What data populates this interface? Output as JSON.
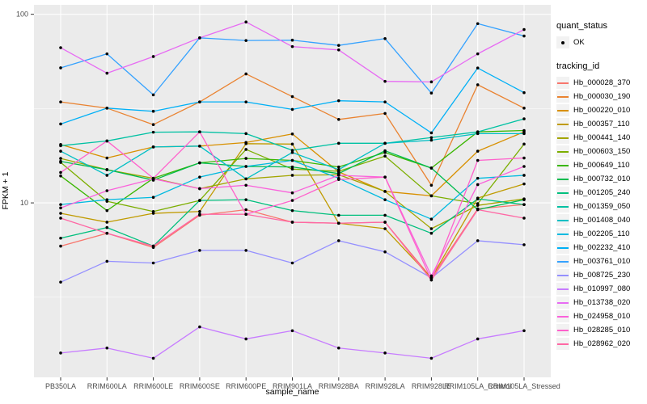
{
  "figure": {
    "background": "#FFFFFF",
    "panel_bg": "#EBEBEB",
    "grid_color": "#FFFFFF",
    "tick_color": "#333333",
    "tick_label_color": "#4D4D4D",
    "point_color": "#000000"
  },
  "axes": {
    "x_label": "sample_name",
    "y_label": "FPKM + 1",
    "y_tick_labels": [
      "100",
      "10"
    ]
  },
  "legend": {
    "quant_title": "quant_status",
    "quant_items": [
      {
        "label": "OK",
        "symbol": "point"
      }
    ],
    "tracking_title": "tracking_id"
  },
  "chart_data": {
    "type": "line",
    "title": "",
    "xlabel": "sample_name",
    "ylabel": "FPKM + 1",
    "y_scale": "log10",
    "ylim": [
      1.19,
      112
    ],
    "y_major_gridlines": [
      10,
      100
    ],
    "y_minor_gridlines": [
      3.162,
      31.62
    ],
    "grid": true,
    "legend_position": "right",
    "point_style": {
      "color": "#000000",
      "shape": "circle",
      "status_label": "OK"
    },
    "categories": [
      "PB350LA",
      "RRIM600LA",
      "RRIM600LE",
      "RRIM600SE",
      "RRIM600PE",
      "RRIM901LA",
      "RRIM928BA",
      "RRIM928LA",
      "RRIM928LE",
      "RRIM105LA_Control",
      "RRIM105LA_Stressed"
    ],
    "series": [
      {
        "name": "Hb_000028_370",
        "color": "#F8766D",
        "values": [
          5.9,
          6.9,
          5.8,
          8.6,
          9.2,
          7.9,
          7.8,
          7.9,
          4.0,
          9.3,
          9.8
        ]
      },
      {
        "name": "Hb_000030_190",
        "color": "#EA8331",
        "values": [
          34.3,
          31.8,
          26.0,
          34.3,
          48.3,
          36.6,
          27.7,
          29.8,
          12.4,
          42.3,
          31.8
        ]
      },
      {
        "name": "Hb_000220_010",
        "color": "#D89000",
        "values": [
          20.4,
          17.3,
          19.8,
          20.0,
          20.9,
          23.2,
          14.6,
          11.5,
          10.9,
          18.8,
          23.8
        ]
      },
      {
        "name": "Hb_000357_110",
        "color": "#C09B00",
        "values": [
          8.8,
          7.9,
          8.8,
          9.0,
          20.6,
          20.5,
          7.8,
          7.3,
          4.0,
          10.6,
          12.6
        ]
      },
      {
        "name": "Hb_000441_140",
        "color": "#A3A500",
        "values": [
          17.2,
          15.0,
          13.5,
          11.9,
          13.4,
          14.0,
          14.1,
          11.5,
          7.3,
          9.7,
          10.5
        ]
      },
      {
        "name": "Hb_000603_150",
        "color": "#7CAE00",
        "values": [
          16.4,
          10.2,
          9.0,
          10.3,
          19.2,
          15.1,
          14.7,
          17.7,
          10.9,
          9.9,
          20.5
        ]
      },
      {
        "name": "Hb_000649_110",
        "color": "#39B600",
        "values": [
          13.9,
          9.1,
          13.5,
          16.3,
          17.2,
          16.8,
          15.5,
          18.5,
          15.3,
          23.8,
          24.2
        ]
      },
      {
        "name": "Hb_000732_010",
        "color": "#00BB4E",
        "values": [
          16.6,
          15.0,
          13.2,
          16.3,
          15.6,
          15.5,
          14.3,
          18.9,
          15.3,
          9.2,
          10.4
        ]
      },
      {
        "name": "Hb_001205_240",
        "color": "#00BF7D",
        "values": [
          6.5,
          7.4,
          5.9,
          10.3,
          10.4,
          9.1,
          8.6,
          8.6,
          6.9,
          10.5,
          9.8
        ]
      },
      {
        "name": "Hb_001359_050",
        "color": "#00C1A3",
        "values": [
          20.1,
          21.3,
          23.7,
          23.8,
          23.3,
          19.0,
          20.7,
          20.7,
          22.2,
          23.8,
          27.9
        ]
      },
      {
        "name": "Hb_001408_040",
        "color": "#00BFC4",
        "values": [
          18.8,
          14.0,
          19.8,
          20.0,
          13.4,
          18.5,
          15.0,
          20.7,
          21.5,
          23.3,
          23.3
        ]
      },
      {
        "name": "Hb_002205_110",
        "color": "#00BAE0",
        "values": [
          9.8,
          10.4,
          10.7,
          13.7,
          15.6,
          16.8,
          13.5,
          10.4,
          8.2,
          13.5,
          14.0
        ]
      },
      {
        "name": "Hb_002232_410",
        "color": "#00B0F6",
        "values": [
          26.2,
          31.8,
          30.6,
          34.3,
          34.3,
          31.3,
          34.8,
          34.3,
          23.5,
          51.9,
          38.4
        ]
      },
      {
        "name": "Hb_003761_010",
        "color": "#35A2FF",
        "values": [
          52.0,
          61.7,
          37.4,
          75.0,
          72.6,
          72.9,
          68.4,
          74.3,
          38.2,
          89.2,
          76.7
        ]
      },
      {
        "name": "Hb_008725_230",
        "color": "#9590FF",
        "values": [
          3.8,
          4.9,
          4.8,
          5.6,
          5.6,
          4.8,
          6.3,
          5.5,
          4.0,
          6.3,
          6.0
        ]
      },
      {
        "name": "Hb_010997_080",
        "color": "#C77CFF",
        "values": [
          1.6,
          1.7,
          1.5,
          2.2,
          1.9,
          2.1,
          1.7,
          1.6,
          1.5,
          1.9,
          2.1
        ]
      },
      {
        "name": "Hb_013738_020",
        "color": "#E76BF3",
        "values": [
          66.5,
          48.7,
          59.7,
          75.0,
          91.0,
          67.4,
          64.7,
          44.1,
          43.8,
          61.7,
          83.0
        ]
      },
      {
        "name": "Hb_024958_010",
        "color": "#FA62DB",
        "values": [
          9.4,
          11.6,
          13.4,
          11.9,
          12.4,
          11.3,
          14.0,
          13.7,
          4.1,
          12.5,
          15.6
        ]
      },
      {
        "name": "Hb_028285_010",
        "color": "#FF61CC",
        "values": [
          14.5,
          21.3,
          13.5,
          23.8,
          8.7,
          10.3,
          13.3,
          13.7,
          3.9,
          16.8,
          17.3
        ]
      },
      {
        "name": "Hb_028962_020",
        "color": "#FF67A4",
        "values": [
          8.3,
          6.9,
          5.9,
          8.7,
          8.7,
          7.9,
          7.8,
          7.9,
          3.9,
          9.2,
          8.3
        ]
      }
    ]
  }
}
